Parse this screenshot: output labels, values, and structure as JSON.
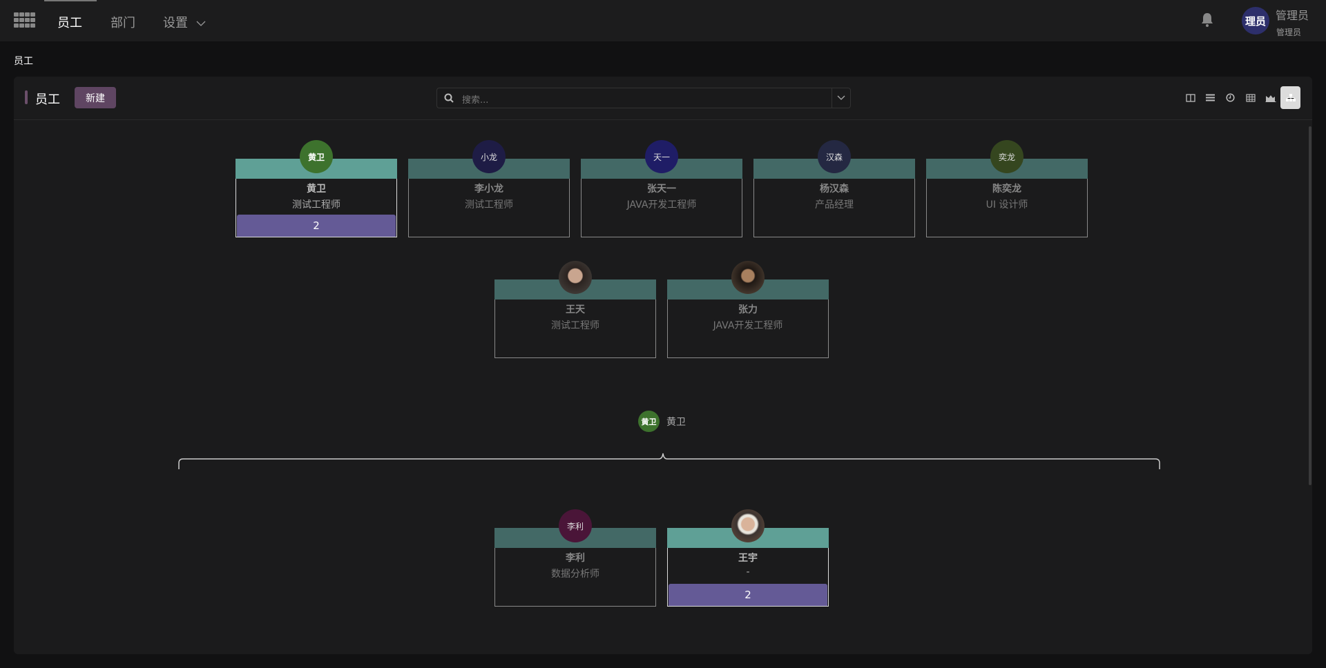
{
  "nav": {
    "items": [
      {
        "label": "员工",
        "active": true
      },
      {
        "label": "部门"
      },
      {
        "label": "设置"
      }
    ],
    "user": {
      "avatar_text": "理员",
      "name": "管理员",
      "role": "管理员",
      "avatar_color": "#2d2f6b"
    }
  },
  "breadcrumb": "员工",
  "panel": {
    "title": "员工",
    "new_label": "新建",
    "search_placeholder": "搜索...",
    "views": [
      "kanban-icon",
      "list-icon",
      "activity-icon",
      "pivot-icon",
      "graph-icon",
      "org-chart-icon"
    ],
    "active_view": "org-chart-icon"
  },
  "colleagues": [
    {
      "avatar": "黄卫",
      "name": "黄卫",
      "job": "测试工程师",
      "count": "2",
      "selected": true,
      "avatar_color": "#3d722d"
    },
    {
      "avatar": "小龙",
      "name": "李小龙",
      "job": "测试工程师",
      "avatar_color": "#1e1c45"
    },
    {
      "avatar": "天一",
      "name": "张天一",
      "job": "JAVA开发工程师",
      "avatar_color": "#1f1d66"
    },
    {
      "avatar": "汉森",
      "name": "杨汉森",
      "job": "产品经理",
      "avatar_color": "#242842"
    },
    {
      "avatar": "奕龙",
      "name": "陈奕龙",
      "job": "UI 设计师",
      "avatar_color": "#35461f"
    }
  ],
  "row2": [
    {
      "name": "王天",
      "job": "测试工程师",
      "photo": true
    },
    {
      "name": "张力",
      "job": "JAVA开发工程师",
      "photo": true
    }
  ],
  "manager": {
    "avatar": "黄卫",
    "name": "黄卫"
  },
  "subordinates": [
    {
      "avatar": "李利",
      "name": "李利",
      "job": "数据分析师",
      "avatar_color": "#4a1538"
    },
    {
      "name": "王宇",
      "job": "-",
      "count": "2",
      "selected": true,
      "photo": true
    }
  ]
}
